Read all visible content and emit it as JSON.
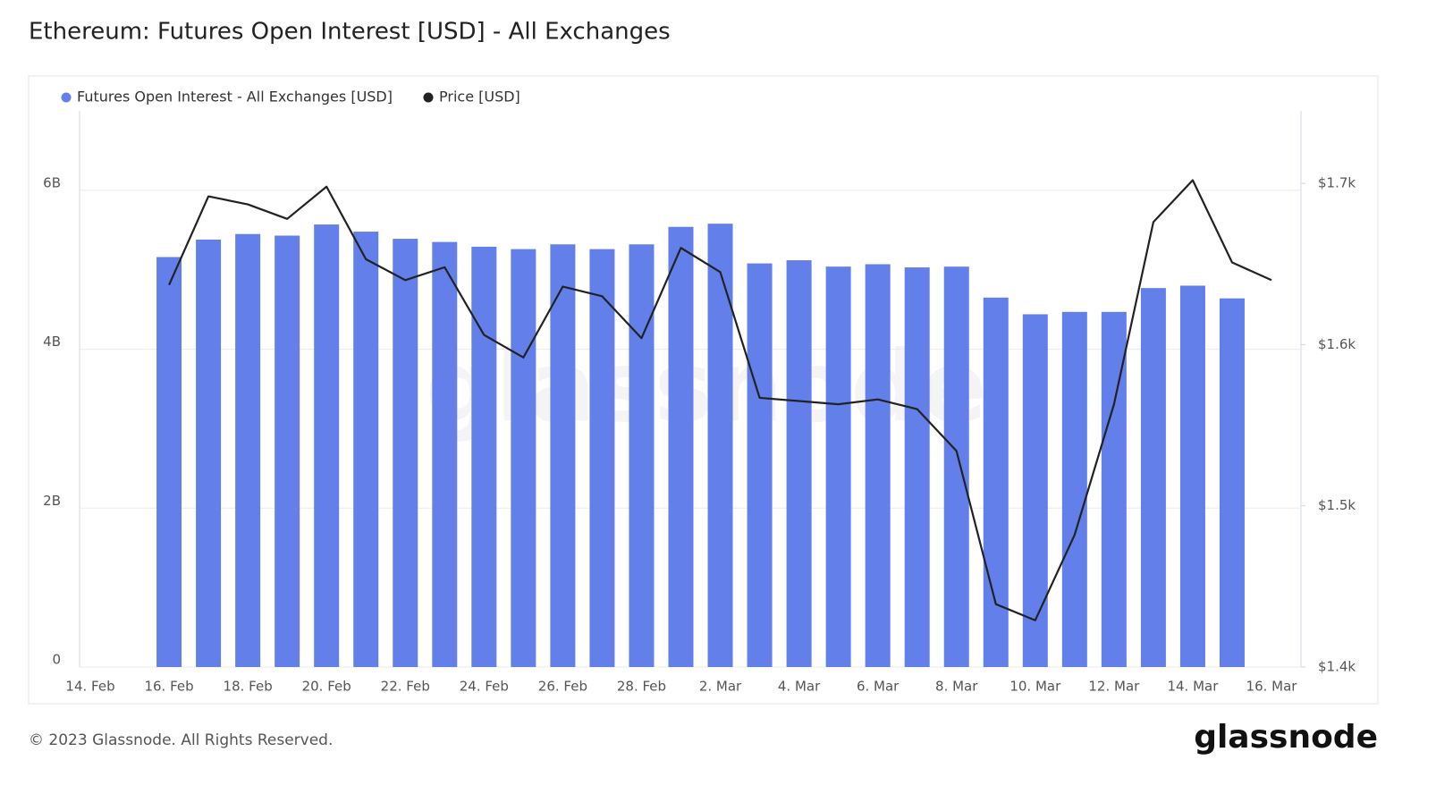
{
  "chart_data": {
    "type": "bar_line",
    "title": "Ethereum: Futures Open Interest [USD] - All Exchanges",
    "footer": "© 2023 Glassnode. All Rights Reserved.",
    "logo": "glassnode",
    "watermark": "glassnode",
    "categories": [
      "14. Feb",
      null,
      "16. Feb",
      null,
      "18. Feb",
      null,
      "20. Feb",
      null,
      "22. Feb",
      null,
      "24. Feb",
      null,
      "26. Feb",
      null,
      "28. Feb",
      null,
      "2. Mar",
      null,
      "4. Mar",
      null,
      "6. Mar",
      null,
      "8. Mar",
      null,
      "10. Mar",
      null,
      "12. Mar",
      null,
      "14. Mar",
      null,
      "16. Mar"
    ],
    "series": [
      {
        "name": "Futures Open Interest - All Exchanges [USD]",
        "color": "#637fea",
        "axis": "y",
        "values": [
          null,
          null,
          5160000000,
          5380000000,
          5450000000,
          5430000000,
          5570000000,
          5480000000,
          5390000000,
          5350000000,
          5290000000,
          5260000000,
          5320000000,
          5260000000,
          5320000000,
          5540000000,
          5580000000,
          5080000000,
          5120000000,
          5040000000,
          5070000000,
          5030000000,
          5040000000,
          4650000000,
          4440000000,
          4470000000,
          4470000000,
          4770000000,
          4800000000,
          4640000000,
          null
        ]
      },
      {
        "name": "Price [USD]",
        "color": "#222222",
        "axis": "y2",
        "values": [
          null,
          null,
          1637,
          1692,
          1687,
          1678,
          1698,
          1653,
          1640,
          1648,
          1606,
          1592,
          1636,
          1630,
          1604,
          1660,
          1645,
          1567,
          1565,
          1563,
          1566,
          1560,
          1534,
          1439,
          1429,
          1482,
          1563,
          1676,
          1702,
          1651,
          1640
        ]
      }
    ],
    "ylim": [
      0,
      7000000000
    ],
    "yticks": [
      0,
      {
        "value": 2000000000,
        "label": "2B"
      },
      {
        "value": 4000000000,
        "label": "4B"
      },
      {
        "value": 6000000000,
        "label": "6B"
      }
    ],
    "y2lim": [
      1400,
      1745
    ],
    "y2ticks": [
      {
        "value": 1400,
        "label": "$1.4k"
      },
      {
        "value": 1500,
        "label": "$1.5k"
      },
      {
        "value": 1600,
        "label": "$1.6k"
      },
      {
        "value": 1700,
        "label": "$1.7k"
      }
    ],
    "grid": true
  }
}
